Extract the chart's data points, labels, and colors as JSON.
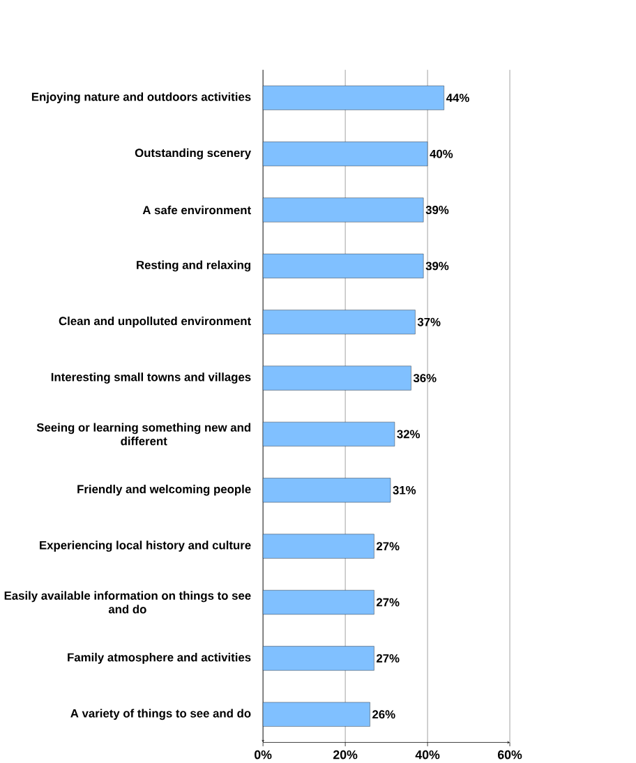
{
  "chart_data": {
    "type": "bar",
    "orientation": "horizontal",
    "categories": [
      "Enjoying nature and outdoors activities",
      "Outstanding scenery",
      "A safe environment",
      "Resting and relaxing",
      "Clean and unpolluted environment",
      "Interesting small towns and villages",
      "Seeing or learning something new and different",
      "Friendly and welcoming people",
      "Experiencing local history and culture",
      "Easily available information on things to see and do",
      "Family atmosphere and activities",
      "A variety of things to see and do"
    ],
    "values": [
      44,
      40,
      39,
      39,
      37,
      36,
      32,
      31,
      27,
      27,
      27,
      26
    ],
    "value_labels": [
      "44%",
      "40%",
      "39%",
      "39%",
      "37%",
      "36%",
      "32%",
      "31%",
      "27%",
      "27%",
      "27%",
      "26%"
    ],
    "color": "#80c0ff",
    "xlim": [
      0,
      60
    ],
    "xticks": [
      {
        "value": 0,
        "label": "0%"
      },
      {
        "value": 20,
        "label": "20%"
      },
      {
        "value": 40,
        "label": "40%"
      },
      {
        "value": 60,
        "label": "60%"
      }
    ],
    "grid": "x"
  }
}
